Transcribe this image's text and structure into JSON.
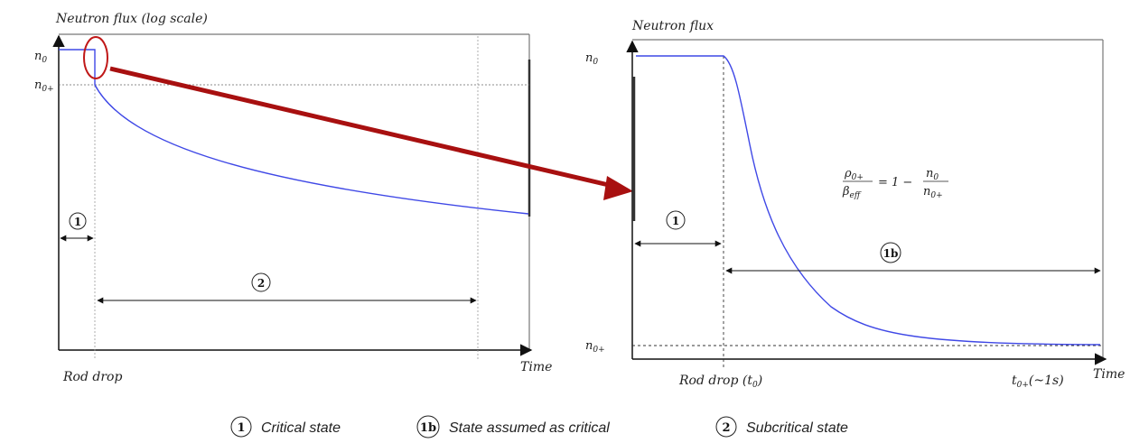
{
  "left_panel": {
    "y_title": "Neutron flux (log scale)",
    "x_label": "Time",
    "y_tick_n0": "n",
    "y_tick_n0_sub": "0",
    "y_tick_n0p": "n",
    "y_tick_n0p_sub": "0+",
    "rod_drop": "Rod drop",
    "marker_1": "1",
    "marker_2": "2"
  },
  "right_panel": {
    "y_title": "Neutron flux",
    "x_label": "Time",
    "y_tick_n0": "n",
    "y_tick_n0_sub": "0",
    "y_tick_n0p": "n",
    "y_tick_n0p_sub": "0+",
    "rod_drop": "Rod drop (t",
    "rod_drop_sub": "0",
    "rod_drop_close": ")",
    "t_end": "t",
    "t_end_sub": "0+",
    "t_end_rest": "(~1s)",
    "marker_1": "1",
    "marker_1b": "1b",
    "formula": {
      "rho": "ρ",
      "rho_sub": "0+",
      "beta": "β",
      "beta_sub": "eff",
      "equals": "= 1 −",
      "n_num": "n",
      "n_num_sub": "0",
      "n_den": "n",
      "n_den_sub": "0+"
    }
  },
  "legend": [
    {
      "badge": "1",
      "label": "Critical state"
    },
    {
      "badge": "1b",
      "label": "State assumed as critical"
    },
    {
      "badge": "2",
      "label": "Subcritical state"
    }
  ],
  "colors": {
    "curve": "#3f48e6",
    "zoom_arrow": "#b01010",
    "axis": "#333333",
    "frame": "#555555"
  }
}
